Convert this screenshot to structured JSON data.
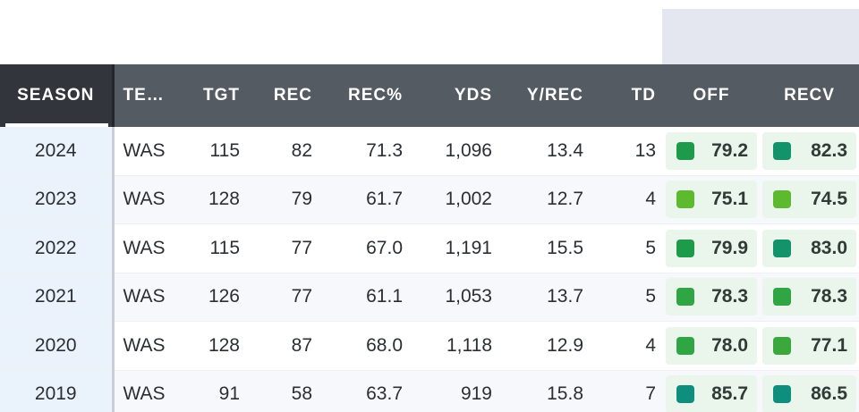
{
  "table": {
    "headers": {
      "season": "SEASON",
      "team": "TE…",
      "tgt": "TGT",
      "rec": "REC",
      "rec_pct": "REC%",
      "yds": "YDS",
      "y_rec": "Y/REC",
      "td": "TD",
      "off": "OFF",
      "recv": "RECV"
    },
    "rows": [
      {
        "season": "2024",
        "team": "WAS",
        "tgt": "115",
        "rec": "82",
        "rec_pct": "71.3",
        "yds": "1,096",
        "y_rec": "13.4",
        "td": "13",
        "off": {
          "value": "79.2",
          "color": "#1e9b4a"
        },
        "recv": {
          "value": "82.3",
          "color": "#12936a"
        }
      },
      {
        "season": "2023",
        "team": "WAS",
        "tgt": "128",
        "rec": "79",
        "rec_pct": "61.7",
        "yds": "1,002",
        "y_rec": "12.7",
        "td": "4",
        "off": {
          "value": "75.1",
          "color": "#5dba2f"
        },
        "recv": {
          "value": "74.5",
          "color": "#5dba2f"
        }
      },
      {
        "season": "2022",
        "team": "WAS",
        "tgt": "115",
        "rec": "77",
        "rec_pct": "67.0",
        "yds": "1,191",
        "y_rec": "15.5",
        "td": "5",
        "off": {
          "value": "79.9",
          "color": "#1e9b4a"
        },
        "recv": {
          "value": "83.0",
          "color": "#12936a"
        }
      },
      {
        "season": "2021",
        "team": "WAS",
        "tgt": "126",
        "rec": "77",
        "rec_pct": "61.1",
        "yds": "1,053",
        "y_rec": "13.7",
        "td": "5",
        "off": {
          "value": "78.3",
          "color": "#2fa543"
        },
        "recv": {
          "value": "78.3",
          "color": "#2fa543"
        }
      },
      {
        "season": "2020",
        "team": "WAS",
        "tgt": "128",
        "rec": "87",
        "rec_pct": "68.0",
        "yds": "1,118",
        "y_rec": "12.9",
        "td": "4",
        "off": {
          "value": "78.0",
          "color": "#2fa543"
        },
        "recv": {
          "value": "77.1",
          "color": "#3aa83c"
        }
      },
      {
        "season": "2019",
        "team": "WAS",
        "tgt": "91",
        "rec": "58",
        "rec_pct": "63.7",
        "yds": "919",
        "y_rec": "15.8",
        "td": "7",
        "off": {
          "value": "85.7",
          "color": "#0e8f7e"
        },
        "recv": {
          "value": "86.5",
          "color": "#0e8f7e"
        }
      }
    ]
  }
}
